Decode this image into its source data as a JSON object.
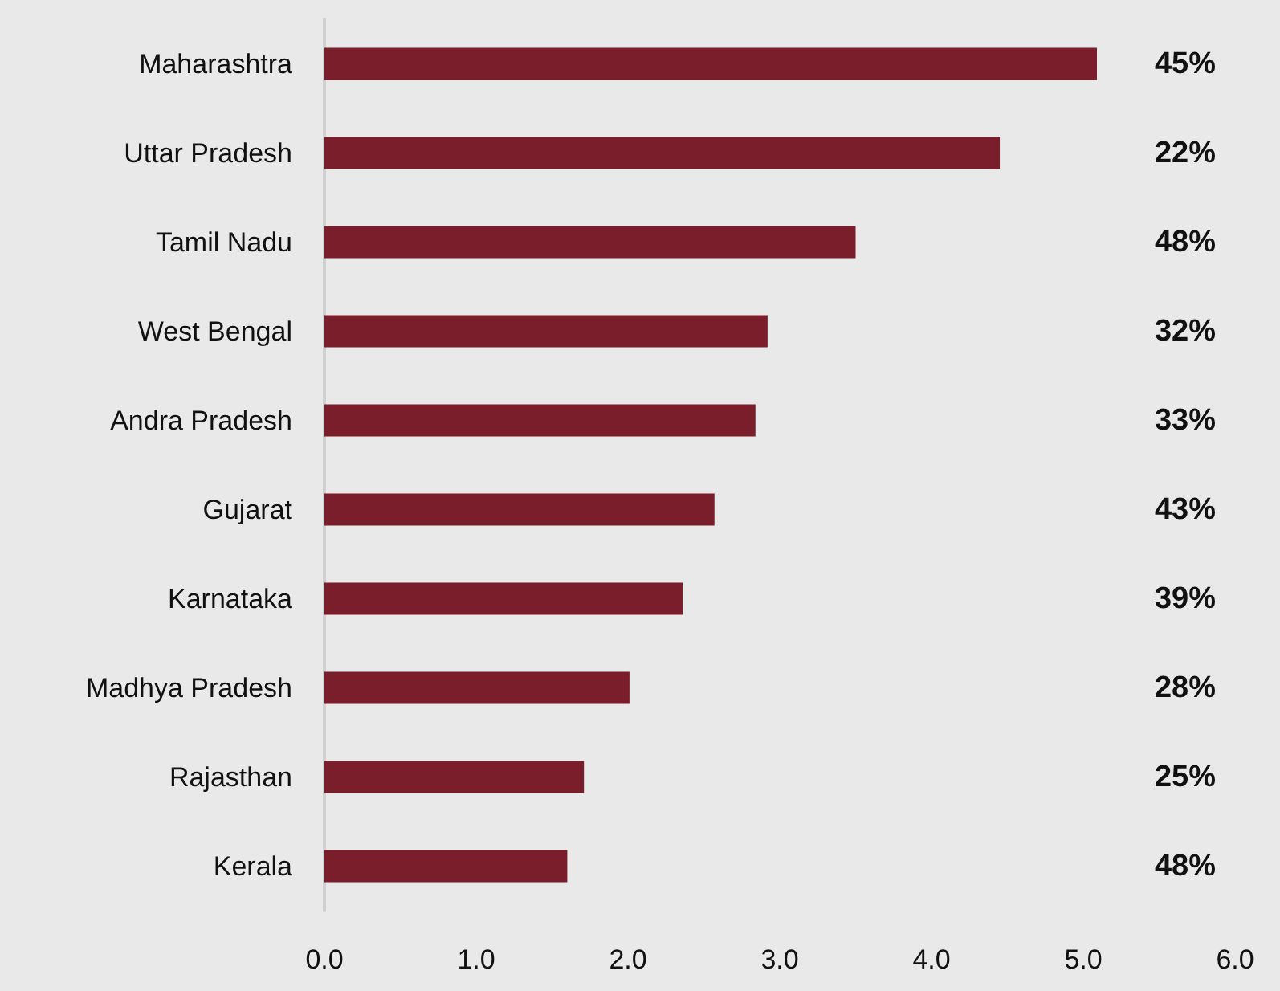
{
  "chart_data": {
    "type": "bar",
    "orientation": "horizontal",
    "categories": [
      "Maharashtra",
      "Uttar Pradesh",
      "Tamil Nadu",
      "West Bengal",
      "Andra Pradesh",
      "Gujarat",
      "Karnataka",
      "Madhya Pradesh",
      "Rajasthan",
      "Kerala"
    ],
    "values": [
      5.09,
      4.45,
      3.5,
      2.92,
      2.84,
      2.57,
      2.36,
      2.01,
      1.71,
      1.6
    ],
    "annotations": [
      "45%",
      "22%",
      "48%",
      "32%",
      "33%",
      "43%",
      "39%",
      "28%",
      "25%",
      "48%"
    ],
    "color": "#7a1e2b",
    "xlim": [
      0,
      6
    ],
    "xticks": [
      {
        "value": 0,
        "label": "0.0"
      },
      {
        "value": 1,
        "label": "1.0"
      },
      {
        "value": 2,
        "label": "2.0"
      },
      {
        "value": 3,
        "label": "3.0"
      },
      {
        "value": 4,
        "label": "4.0"
      },
      {
        "value": 5,
        "label": "5.0"
      },
      {
        "value": 6,
        "label": "6.0"
      }
    ],
    "grid": false
  }
}
